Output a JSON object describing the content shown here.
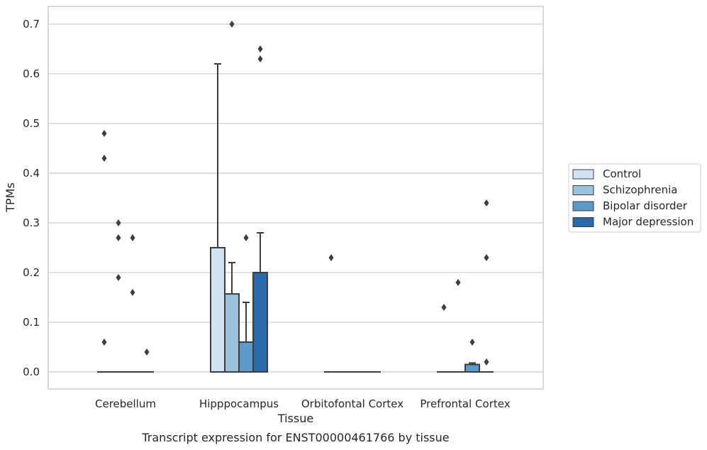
{
  "chart_data": {
    "type": "box",
    "title": "",
    "caption": "Transcript expression for ENST00000461766 by tissue",
    "xlabel": "Tissue",
    "ylabel": "TPMs",
    "ylim": [
      -0.034,
      0.735
    ],
    "yticks": [
      0.0,
      0.1,
      0.2,
      0.3,
      0.4,
      0.5,
      0.6,
      0.7
    ],
    "ytick_labels": [
      "0.0",
      "0.1",
      "0.2",
      "0.3",
      "0.4",
      "0.5",
      "0.6",
      "0.7"
    ],
    "categories": [
      "Cerebellum",
      "Hipppocampus",
      "Orbitofontal Cortex",
      "Prefrontal Cortex"
    ],
    "grid": true,
    "legend_position": "right",
    "series": [
      {
        "name": "Control",
        "color": "#d3e2f2",
        "boxes": [
          {
            "q1": 0,
            "median": 0,
            "q3": 0,
            "whislo": 0,
            "whishi": 0,
            "fliers": [
              0.48,
              0.43,
              0.06
            ]
          },
          {
            "q1": 0,
            "median": 0,
            "q3": 0.25,
            "whislo": 0,
            "whishi": 0.62,
            "fliers": []
          },
          {
            "q1": 0,
            "median": 0,
            "q3": 0,
            "whislo": 0,
            "whishi": 0,
            "fliers": [
              0.23
            ]
          },
          {
            "q1": 0,
            "median": 0,
            "q3": 0,
            "whislo": 0,
            "whishi": 0,
            "fliers": [
              0.13
            ]
          }
        ]
      },
      {
        "name": "Schizophrenia",
        "color": "#9ac1dd",
        "boxes": [
          {
            "q1": 0,
            "median": 0,
            "q3": 0,
            "whislo": 0,
            "whishi": 0,
            "fliers": [
              0.3,
              0.27,
              0.19
            ]
          },
          {
            "q1": 0,
            "median": 0,
            "q3": 0.157,
            "whislo": 0,
            "whishi": 0.22,
            "fliers": [
              0.7
            ]
          },
          {
            "q1": 0,
            "median": 0,
            "q3": 0,
            "whislo": 0,
            "whishi": 0,
            "fliers": []
          },
          {
            "q1": 0,
            "median": 0,
            "q3": 0,
            "whislo": 0,
            "whishi": 0,
            "fliers": [
              0.18
            ]
          }
        ]
      },
      {
        "name": "Bipolar disorder",
        "color": "#5b9ac9",
        "boxes": [
          {
            "q1": 0,
            "median": 0,
            "q3": 0,
            "whislo": 0,
            "whishi": 0,
            "fliers": [
              0.27,
              0.16
            ]
          },
          {
            "q1": 0,
            "median": 0,
            "q3": 0.06,
            "whislo": 0,
            "whishi": 0.14,
            "fliers": [
              0.27
            ]
          },
          {
            "q1": 0,
            "median": 0,
            "q3": 0,
            "whislo": 0,
            "whishi": 0,
            "fliers": []
          },
          {
            "q1": 0,
            "median": 0,
            "q3": 0.015,
            "whislo": 0,
            "whishi": 0.018,
            "fliers": [
              0.06
            ]
          }
        ]
      },
      {
        "name": "Major depression",
        "color": "#2b6aa9",
        "boxes": [
          {
            "q1": 0,
            "median": 0,
            "q3": 0,
            "whislo": 0,
            "whishi": 0,
            "fliers": [
              0.04
            ]
          },
          {
            "q1": 0,
            "median": 0,
            "q3": 0.2,
            "whislo": 0,
            "whishi": 0.28,
            "fliers": [
              0.65,
              0.63
            ]
          },
          {
            "q1": 0,
            "median": 0,
            "q3": 0,
            "whislo": 0,
            "whishi": 0,
            "fliers": []
          },
          {
            "q1": 0,
            "median": 0,
            "q3": 0,
            "whislo": 0,
            "whishi": 0,
            "fliers": [
              0.34,
              0.23,
              0.02
            ]
          }
        ]
      }
    ]
  }
}
